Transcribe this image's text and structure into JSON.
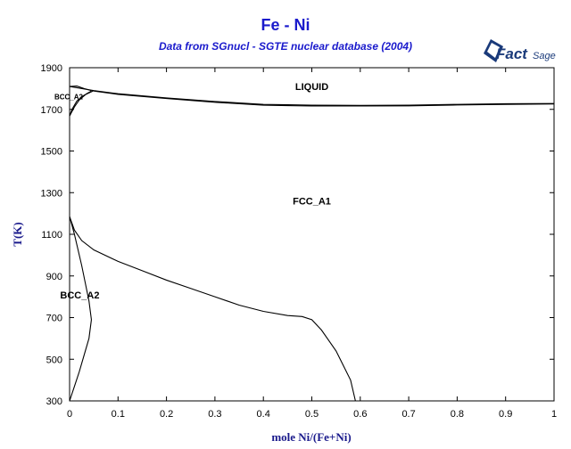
{
  "chart_data": {
    "type": "line",
    "title": "Fe - Ni",
    "subtitle": "Data from SGnucl - SGTE nuclear database (2004)",
    "xlabel": "mole Ni/(Fe+Ni)",
    "ylabel": "T(K)",
    "xlim": [
      0,
      1
    ],
    "ylim": [
      300,
      1900
    ],
    "x_ticks": [
      "0",
      "0.1",
      "0.2",
      "0.3",
      "0.4",
      "0.5",
      "0.6",
      "0.7",
      "0.8",
      "0.9",
      "1"
    ],
    "y_ticks": [
      "300",
      "500",
      "700",
      "900",
      "1100",
      "1300",
      "1500",
      "1700",
      "1900"
    ],
    "grid": false,
    "series": [
      {
        "x": [
          0,
          0.05,
          0.1,
          0.2,
          0.3,
          0.4,
          0.45,
          0.5,
          0.6,
          0.7,
          0.8,
          0.9,
          1.0
        ],
        "y": [
          1810,
          1790,
          1775,
          1755,
          1738,
          1724,
          1722,
          1720,
          1719,
          1720,
          1724,
          1727,
          1728
        ]
      },
      {
        "x": [
          0.05,
          0.1,
          0.2,
          0.3,
          0.4,
          0.45,
          0.5,
          0.6,
          0.7,
          0.8,
          0.9,
          1.0
        ],
        "y": [
          1788,
          1772,
          1752,
          1734,
          1720,
          1718,
          1716,
          1716,
          1717,
          1721,
          1724,
          1726
        ]
      },
      {
        "x": [
          0,
          0.015,
          0.03,
          0.045
        ],
        "y": [
          1810,
          1812,
          1800,
          1790
        ]
      },
      {
        "x": [
          0,
          0.01,
          0.02,
          0.035,
          0.045
        ],
        "y": [
          1668,
          1712,
          1745,
          1775,
          1788
        ]
      },
      {
        "x": [
          0,
          0.005,
          0.015,
          0.03,
          0.05
        ],
        "y": [
          1668,
          1700,
          1740,
          1768,
          1790
        ]
      },
      {
        "x": [
          0,
          0.01,
          0.025,
          0.05,
          0.1,
          0.15,
          0.2,
          0.25,
          0.3,
          0.35,
          0.4,
          0.45,
          0.48,
          0.5,
          0.52,
          0.55,
          0.58,
          0.59
        ],
        "y": [
          1185,
          1120,
          1070,
          1025,
          970,
          925,
          880,
          840,
          800,
          760,
          730,
          710,
          705,
          690,
          640,
          540,
          400,
          300
        ]
      },
      {
        "x": [
          0,
          0.01,
          0.025,
          0.04,
          0.045,
          0.04,
          0.03,
          0.02,
          0.01,
          0
        ],
        "y": [
          1185,
          1100,
          950,
          780,
          690,
          600,
          520,
          440,
          370,
          300
        ]
      }
    ],
    "annotations": [
      {
        "text": "LIQUID",
        "x": 0.5,
        "y": 1810
      },
      {
        "text": "FCC_A1",
        "x": 0.5,
        "y": 1260
      },
      {
        "text": "BCC_A2",
        "x": 0.01,
        "y": 810
      },
      {
        "text": "BCC_A2",
        "x": 0.0,
        "y": 1765
      }
    ]
  },
  "logo": {
    "text_main": "Fact",
    "text_sage": "Sage",
    "color": "#1a3a7a"
  }
}
